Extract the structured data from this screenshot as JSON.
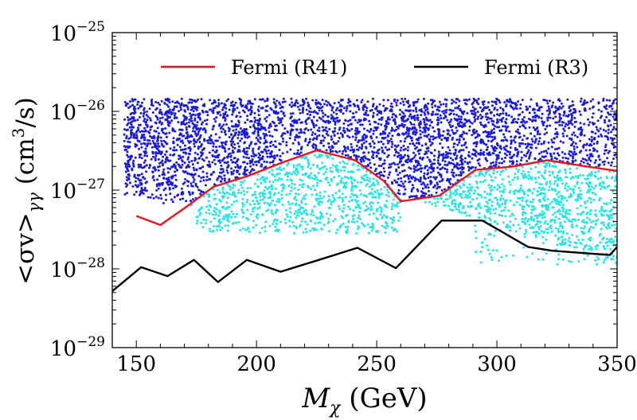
{
  "chart_data": {
    "type": "scatter",
    "title": "",
    "xlabel": "M_χ (GeV)",
    "ylabel": "<σv>_γγ (cm³/s)",
    "x_scale": "linear",
    "y_scale": "log",
    "xlim": [
      140,
      350
    ],
    "ylim": [
      1e-29,
      1e-25
    ],
    "x_ticks": [
      150,
      200,
      250,
      300,
      350
    ],
    "x_tick_labels": [
      "150",
      "200",
      "250",
      "300",
      "350"
    ],
    "y_ticks": [
      1e-29,
      1e-28,
      1e-27,
      1e-26,
      1e-25
    ],
    "y_tick_labels": [
      {
        "base": "10",
        "exp": "−29"
      },
      {
        "base": "10",
        "exp": "−28"
      },
      {
        "base": "10",
        "exp": "−27"
      },
      {
        "base": "10",
        "exp": "−26"
      },
      {
        "base": "10",
        "exp": "−25"
      }
    ],
    "xlabel_parts": {
      "var": "M",
      "sub": "χ",
      "rest": " (GeV)"
    },
    "ylabel_parts": {
      "pre": "<σv>",
      "sub": "γγ",
      "rest1": " (cm",
      "sup": "3",
      "rest2": "/s)"
    },
    "legend": {
      "placement": "top",
      "entries": [
        {
          "label": "Fermi (R41)",
          "color": "#e8161c",
          "text_color": "#e8161c"
        },
        {
          "label": "Fermi (R3)",
          "color": "#000000",
          "text_color": "#000000"
        }
      ]
    },
    "series": [
      {
        "name": "Fermi (R41)",
        "kind": "line",
        "color": "#e8161c",
        "x": [
          150,
          160,
          172,
          182,
          196,
          210,
          225,
          241,
          253,
          260,
          276,
          291,
          307,
          321,
          337,
          350
        ],
        "y": [
          4.7e-28,
          3.6e-28,
          6.5e-28,
          1.1e-27,
          1.5e-27,
          2.2e-27,
          3.2e-27,
          2.4e-27,
          1.3e-27,
          7.2e-28,
          8.5e-28,
          1.8e-27,
          2e-27,
          2.4e-27,
          2e-27,
          1.75e-27
        ]
      },
      {
        "name": "Fermi (R3)",
        "kind": "line",
        "color": "#000000",
        "x": [
          140,
          152,
          163,
          174,
          184,
          196,
          210,
          226,
          242,
          258,
          277,
          294,
          313,
          323,
          347,
          350
        ],
        "y": [
          5.2e-29,
          1.05e-28,
          8.1e-29,
          1.3e-28,
          6.8e-29,
          1.3e-28,
          9.2e-29,
          1.3e-28,
          1.85e-28,
          1.02e-28,
          4.1e-28,
          4.1e-28,
          1.9e-28,
          1.7e-28,
          1.5e-28,
          1.9e-28
        ]
      },
      {
        "name": "",
        "kind": "scatter",
        "color": "#1a1adf",
        "x_range": [
          145,
          350
        ],
        "y_max": 1.45e-26,
        "description": "dense band of model points above the R41 bound"
      },
      {
        "name": "",
        "kind": "scatter",
        "color": "#22e6e8",
        "x_range": [
          145,
          350
        ],
        "y_min": 1.1e-28,
        "description": "model points below the R41 bound"
      }
    ],
    "grid": false,
    "colors": {
      "blue_points": "#1a1adf",
      "cyan_points": "#22e6e8",
      "red_line": "#e8161c",
      "black_line": "#000000"
    }
  }
}
